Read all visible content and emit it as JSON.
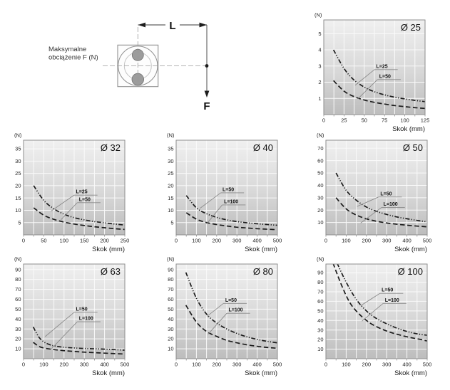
{
  "diagram": {
    "caption_line1": "Maksymalne",
    "caption_line2": "obciążenie F (N)",
    "dimension_label": "L",
    "force_label": "F"
  },
  "colors": {
    "plot_bg_top": "#f0f0f0",
    "plot_bg_mid": "#d8d8d8",
    "plot_bg_bottom": "#bdbdbd",
    "grid": "#fafafa",
    "border": "#8e8e8e",
    "curve": "#1b1b1b",
    "leader": "#8a8a8a",
    "text": "#1f1f1f"
  },
  "chart_data": [
    {
      "type": "line",
      "title": "Ø 25",
      "xlabel": "Skok (mm)",
      "ylabel": "(N)",
      "xlim": [
        0,
        125
      ],
      "ylim": [
        0,
        5.85
      ],
      "grid": true,
      "xticks": [
        0,
        25,
        50,
        75,
        100,
        125
      ],
      "yticks": [
        1,
        2,
        3,
        4,
        5
      ],
      "x_minor_step": 12.5,
      "series": [
        {
          "name": "L=25",
          "line_style": "dash-dot-dot",
          "points": [
            [
              12,
              4.0
            ],
            [
              25,
              2.85
            ],
            [
              37,
              2.15
            ],
            [
              50,
              1.7
            ],
            [
              62,
              1.42
            ],
            [
              75,
              1.22
            ],
            [
              87,
              1.08
            ],
            [
              100,
              0.97
            ],
            [
              112,
              0.88
            ],
            [
              125,
              0.8
            ]
          ]
        },
        {
          "name": "L=50",
          "line_style": "dashed",
          "points": [
            [
              12,
              2.1
            ],
            [
              25,
              1.45
            ],
            [
              37,
              1.12
            ],
            [
              50,
              0.9
            ],
            [
              62,
              0.76
            ],
            [
              75,
              0.65
            ],
            [
              87,
              0.56
            ],
            [
              100,
              0.49
            ],
            [
              112,
              0.43
            ],
            [
              125,
              0.38
            ]
          ]
        }
      ],
      "legend": [
        {
          "label": "L=25",
          "anchor": [
            0.5,
            0.525
          ],
          "target": [
            0.31,
            0.69
          ]
        },
        {
          "label": "L=50",
          "anchor": [
            0.53,
            0.63
          ],
          "target": [
            0.34,
            0.83
          ]
        }
      ]
    },
    {
      "type": "line",
      "title": "Ø 32",
      "xlabel": "Skok (mm)",
      "ylabel": "(N)",
      "xlim": [
        0,
        250
      ],
      "ylim": [
        0,
        38.5
      ],
      "grid": true,
      "xticks": [
        0,
        50,
        100,
        150,
        200,
        250
      ],
      "yticks": [
        5,
        10,
        15,
        20,
        25,
        30,
        35
      ],
      "x_minor_step": 25,
      "series": [
        {
          "name": "L=25",
          "line_style": "dash-dot-dot",
          "points": [
            [
              25,
              20
            ],
            [
              50,
              14
            ],
            [
              75,
              10.6
            ],
            [
              100,
              8.4
            ],
            [
              125,
              7.0
            ],
            [
              150,
              6.1
            ],
            [
              175,
              5.4
            ],
            [
              200,
              4.9
            ],
            [
              225,
              4.4
            ],
            [
              250,
              4.0
            ]
          ]
        },
        {
          "name": "L=50",
          "line_style": "dashed",
          "points": [
            [
              25,
              11
            ],
            [
              50,
              8.0
            ],
            [
              75,
              6.3
            ],
            [
              100,
              5.2
            ],
            [
              125,
              4.4
            ],
            [
              150,
              3.8
            ],
            [
              175,
              3.3
            ],
            [
              200,
              2.9
            ],
            [
              225,
              2.5
            ],
            [
              250,
              2.2
            ]
          ]
        }
      ],
      "legend": [
        {
          "label": "L=25",
          "anchor": [
            0.5,
            0.58
          ],
          "target": [
            0.27,
            0.75
          ]
        },
        {
          "label": "L=50",
          "anchor": [
            0.53,
            0.66
          ],
          "target": [
            0.37,
            0.84
          ]
        }
      ]
    },
    {
      "type": "line",
      "title": "Ø 40",
      "xlabel": "Skok (mm)",
      "ylabel": "(N)",
      "xlim": [
        0,
        500
      ],
      "ylim": [
        0,
        38.5
      ],
      "grid": true,
      "xticks": [
        0,
        100,
        200,
        300,
        400,
        500
      ],
      "yticks": [
        5,
        10,
        15,
        20,
        25,
        30,
        35
      ],
      "x_minor_step": 50,
      "series": [
        {
          "name": "L=50",
          "line_style": "dash-dot-dot",
          "points": [
            [
              50,
              16
            ],
            [
              100,
              11
            ],
            [
              150,
              8.6
            ],
            [
              200,
              7.1
            ],
            [
              250,
              6.1
            ],
            [
              300,
              5.4
            ],
            [
              350,
              4.9
            ],
            [
              400,
              4.5
            ],
            [
              450,
              4.2
            ],
            [
              500,
              3.9
            ]
          ]
        },
        {
          "name": "L=100",
          "line_style": "dashed",
          "points": [
            [
              50,
              9
            ],
            [
              100,
              6.4
            ],
            [
              150,
              5.0
            ],
            [
              200,
              4.2
            ],
            [
              250,
              3.6
            ],
            [
              300,
              3.1
            ],
            [
              350,
              2.8
            ],
            [
              400,
              2.5
            ],
            [
              450,
              2.3
            ],
            [
              500,
              2.1
            ]
          ]
        }
      ],
      "legend": [
        {
          "label": "L=50",
          "anchor": [
            0.44,
            0.556
          ],
          "target": [
            0.235,
            0.72
          ]
        },
        {
          "label": "L=100",
          "anchor": [
            0.455,
            0.684
          ],
          "target": [
            0.3,
            0.885
          ]
        }
      ]
    },
    {
      "type": "line",
      "title": "Ø 50",
      "xlabel": "Skok (mm)",
      "ylabel": "(N)",
      "xlim": [
        0,
        500
      ],
      "ylim": [
        0,
        76.5
      ],
      "grid": true,
      "xticks": [
        0,
        100,
        200,
        300,
        400,
        500
      ],
      "yticks": [
        10,
        20,
        30,
        40,
        50,
        60,
        70
      ],
      "x_minor_step": 50,
      "series": [
        {
          "name": "L=50",
          "line_style": "dash-dot-dot",
          "points": [
            [
              50,
              50
            ],
            [
              100,
              36
            ],
            [
              150,
              28
            ],
            [
              200,
              22.5
            ],
            [
              250,
              19
            ],
            [
              300,
              16.5
            ],
            [
              350,
              14.5
            ],
            [
              400,
              13
            ],
            [
              450,
              11.7
            ],
            [
              500,
              10.5
            ]
          ]
        },
        {
          "name": "L=100",
          "line_style": "dashed",
          "points": [
            [
              50,
              30
            ],
            [
              100,
              21
            ],
            [
              150,
              16
            ],
            [
              200,
              13
            ],
            [
              250,
              11
            ],
            [
              300,
              9.6
            ],
            [
              350,
              8.6
            ],
            [
              400,
              7.8
            ],
            [
              450,
              7.1
            ],
            [
              500,
              6.5
            ]
          ]
        }
      ],
      "legend": [
        {
          "label": "L=50",
          "anchor": [
            0.52,
            0.6
          ],
          "target": [
            0.307,
            0.7
          ]
        },
        {
          "label": "L=100",
          "anchor": [
            0.55,
            0.71
          ],
          "target": [
            0.343,
            0.875
          ]
        }
      ]
    },
    {
      "type": "line",
      "title": "Ø 63",
      "xlabel": "Skok (mm)",
      "ylabel": "(N)",
      "xlim": [
        0,
        500
      ],
      "ylim": [
        0,
        95.5
      ],
      "grid": true,
      "xticks": [
        0,
        100,
        200,
        300,
        400,
        500
      ],
      "yticks": [
        10,
        20,
        30,
        40,
        50,
        60,
        70,
        80,
        90
      ],
      "x_minor_step": 50,
      "series": [
        {
          "name": "L=50",
          "line_style": "dash-dot-dot",
          "points": [
            [
              48,
              32
            ],
            [
              75,
              22
            ],
            [
              100,
              17
            ],
            [
              125,
              14.5
            ],
            [
              150,
              13
            ],
            [
              200,
              11.5
            ],
            [
              250,
              10.8
            ],
            [
              300,
              10.3
            ],
            [
              350,
              10
            ],
            [
              400,
              9.6
            ],
            [
              450,
              9.1
            ],
            [
              500,
              8.6
            ]
          ]
        },
        {
          "name": "L=100",
          "line_style": "dashed",
          "points": [
            [
              48,
              16.5
            ],
            [
              75,
              12.5
            ],
            [
              100,
              10.8
            ],
            [
              150,
              9.2
            ],
            [
              200,
              8.1
            ],
            [
              250,
              7.3
            ],
            [
              300,
              6.6
            ],
            [
              350,
              6.1
            ],
            [
              400,
              5.6
            ],
            [
              450,
              5.1
            ],
            [
              500,
              4.7
            ]
          ]
        }
      ],
      "legend": [
        {
          "label": "L=50",
          "anchor": [
            0.5,
            0.51
          ],
          "target": [
            0.213,
            0.767
          ]
        },
        {
          "label": "L=100",
          "anchor": [
            0.53,
            0.61
          ],
          "target": [
            0.272,
            0.9
          ]
        }
      ]
    },
    {
      "type": "line",
      "title": "Ø 80",
      "xlabel": "Skok (mm)",
      "ylabel": "(N)",
      "xlim": [
        0,
        500
      ],
      "ylim": [
        0,
        95.5
      ],
      "grid": true,
      "xticks": [
        0,
        100,
        200,
        300,
        400,
        500
      ],
      "yticks": [
        10,
        20,
        30,
        40,
        50,
        60,
        70,
        80,
        90
      ],
      "x_minor_step": 50,
      "series": [
        {
          "name": "L=50",
          "line_style": "dash-dot-dot",
          "points": [
            [
              48,
              87
            ],
            [
              100,
              61
            ],
            [
              150,
              45
            ],
            [
              200,
              36
            ],
            [
              250,
              30
            ],
            [
              300,
              25.5
            ],
            [
              350,
              22
            ],
            [
              400,
              19.5
            ],
            [
              450,
              17.5
            ],
            [
              500,
              16
            ]
          ]
        },
        {
          "name": "L=100",
          "line_style": "dashed",
          "points": [
            [
              48,
              54
            ],
            [
              100,
              37
            ],
            [
              150,
              27.5
            ],
            [
              200,
              22.5
            ],
            [
              250,
              18.5
            ],
            [
              300,
              16
            ],
            [
              350,
              14
            ],
            [
              400,
              12.5
            ],
            [
              450,
              11.3
            ],
            [
              500,
              10.5
            ]
          ]
        }
      ],
      "legend": [
        {
          "label": "L=50",
          "anchor": [
            0.467,
            0.416
          ],
          "target": [
            0.303,
            0.554
          ]
        },
        {
          "label": "L=100",
          "anchor": [
            0.5,
            0.52
          ],
          "target": [
            0.315,
            0.742
          ]
        }
      ]
    },
    {
      "type": "line",
      "title": "Ø 100",
      "xlabel": "Skok (mm)",
      "ylabel": "(N)",
      "xlim": [
        0,
        500
      ],
      "ylim": [
        0,
        99
      ],
      "grid": true,
      "xticks": [
        0,
        100,
        200,
        300,
        400,
        500
      ],
      "yticks": [
        10,
        20,
        30,
        40,
        50,
        60,
        70,
        80,
        90
      ],
      "x_minor_step": 50,
      "series": [
        {
          "name": "L=50",
          "line_style": "dash-dot-dot",
          "points": [
            [
              55,
              100
            ],
            [
              100,
              80
            ],
            [
              150,
              62
            ],
            [
              200,
              50
            ],
            [
              250,
              42
            ],
            [
              300,
              36.5
            ],
            [
              350,
              32
            ],
            [
              400,
              28.5
            ],
            [
              450,
              26
            ],
            [
              500,
              24.5
            ]
          ]
        },
        {
          "name": "L=100",
          "line_style": "dashed",
          "points": [
            [
              35,
              100
            ],
            [
              77,
              77
            ],
            [
              120,
              58
            ],
            [
              170,
              45.5
            ],
            [
              220,
              37
            ],
            [
              270,
              31.5
            ],
            [
              320,
              27.5
            ],
            [
              370,
              24.5
            ],
            [
              420,
              22
            ],
            [
              470,
              20
            ],
            [
              500,
              18.5
            ]
          ]
        }
      ],
      "legend": [
        {
          "label": "L=50",
          "anchor": [
            0.533,
            0.31
          ],
          "target": [
            0.343,
            0.44
          ]
        },
        {
          "label": "L=100",
          "anchor": [
            0.565,
            0.416
          ],
          "target": [
            0.355,
            0.604
          ]
        }
      ]
    }
  ]
}
